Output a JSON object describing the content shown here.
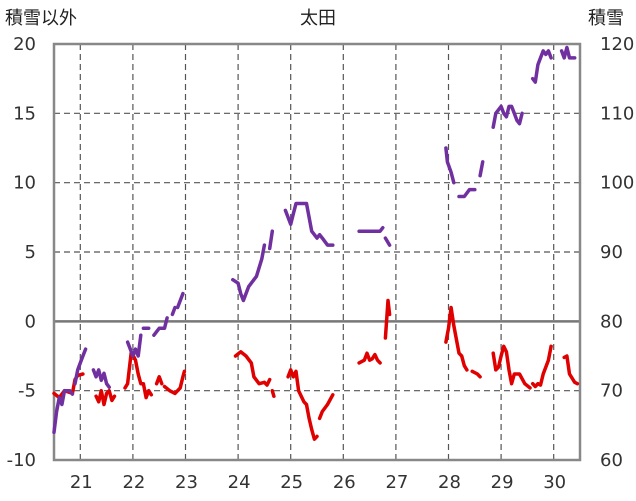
{
  "chart_data": {
    "type": "line",
    "title": "太田",
    "left_axis_label": "積雪以外",
    "right_axis_label": "積雪",
    "x_tick_labels": [
      "21",
      "22",
      "23",
      "24",
      "25",
      "26",
      "27",
      "28",
      "29",
      "30"
    ],
    "xlim": [
      20.5,
      30.5
    ],
    "left_ylim": [
      -10,
      20
    ],
    "left_ticks": [
      "20",
      "15",
      "10",
      "5",
      "0",
      "-5",
      "-10"
    ],
    "right_ylim": [
      60,
      120
    ],
    "right_ticks": [
      "120",
      "110",
      "100",
      "90",
      "80",
      "70",
      "60"
    ],
    "grid": true,
    "series": [
      {
        "axis": "left",
        "color": "#e00000",
        "segments": [
          [
            [
              20.5,
              -5.2
            ],
            [
              20.6,
              -5.5
            ],
            [
              20.7,
              -5.0
            ],
            [
              20.85,
              -5.2
            ],
            [
              20.9,
              -4.2
            ],
            [
              20.95,
              -3.9
            ],
            [
              21.05,
              -3.8
            ]
          ],
          [
            [
              21.3,
              -5.4
            ],
            [
              21.35,
              -5.8
            ],
            [
              21.4,
              -5.0
            ],
            [
              21.45,
              -6.0
            ],
            [
              21.5,
              -5.2
            ],
            [
              21.55,
              -5.0
            ],
            [
              21.6,
              -5.7
            ],
            [
              21.65,
              -5.4
            ]
          ],
          [
            [
              21.85,
              -4.8
            ],
            [
              21.9,
              -4.5
            ],
            [
              21.97,
              -2.2
            ],
            [
              22.05,
              -2.8
            ],
            [
              22.1,
              -3.8
            ],
            [
              22.15,
              -4.5
            ],
            [
              22.2,
              -4.5
            ],
            [
              22.25,
              -5.5
            ],
            [
              22.3,
              -5.0
            ],
            [
              22.35,
              -5.3
            ]
          ],
          [
            [
              22.45,
              -4.5
            ],
            [
              22.5,
              -4.0
            ],
            [
              22.55,
              -4.5
            ]
          ],
          [
            [
              22.6,
              -4.7
            ],
            [
              22.7,
              -5.0
            ],
            [
              22.8,
              -5.2
            ],
            [
              22.9,
              -4.8
            ],
            [
              22.95,
              -4.0
            ],
            [
              22.98,
              -3.6
            ]
          ],
          [
            [
              23.95,
              -2.5
            ],
            [
              24.05,
              -2.2
            ],
            [
              24.15,
              -2.5
            ],
            [
              24.25,
              -3.0
            ],
            [
              24.3,
              -4.0
            ],
            [
              24.4,
              -4.5
            ],
            [
              24.5,
              -4.4
            ],
            [
              24.55,
              -4.6
            ],
            [
              24.6,
              -4.2
            ]
          ],
          [
            [
              24.65,
              -5.0
            ],
            [
              24.68,
              -5.4
            ]
          ],
          [
            [
              24.95,
              -4.0
            ],
            [
              25.0,
              -3.5
            ],
            [
              25.05,
              -4.0
            ],
            [
              25.1,
              -3.6
            ],
            [
              25.15,
              -5.0
            ],
            [
              25.25,
              -5.8
            ],
            [
              25.3,
              -6.0
            ],
            [
              25.35,
              -7.0
            ],
            [
              25.4,
              -7.8
            ],
            [
              25.45,
              -8.5
            ],
            [
              25.5,
              -8.3
            ]
          ],
          [
            [
              25.55,
              -7.0
            ],
            [
              25.6,
              -6.5
            ],
            [
              25.7,
              -6.0
            ],
            [
              25.8,
              -5.3
            ]
          ],
          [
            [
              26.3,
              -3.0
            ],
            [
              26.4,
              -2.8
            ],
            [
              26.45,
              -2.3
            ],
            [
              26.5,
              -2.8
            ],
            [
              26.55,
              -2.7
            ],
            [
              26.6,
              -2.4
            ],
            [
              26.65,
              -2.8
            ],
            [
              26.7,
              -3.0
            ]
          ],
          [
            [
              26.8,
              -1.2
            ],
            [
              26.85,
              1.5
            ],
            [
              26.88,
              0.5
            ]
          ],
          [
            [
              27.95,
              -1.5
            ],
            [
              28.0,
              -0.5
            ],
            [
              28.05,
              1.0
            ],
            [
              28.1,
              -0.3
            ],
            [
              28.2,
              -2.3
            ],
            [
              28.25,
              -2.5
            ],
            [
              28.3,
              -3.2
            ],
            [
              28.35,
              -3.5
            ]
          ],
          [
            [
              28.45,
              -3.6
            ],
            [
              28.55,
              -3.8
            ],
            [
              28.6,
              -4.0
            ]
          ],
          [
            [
              28.85,
              -2.3
            ],
            [
              28.9,
              -3.5
            ],
            [
              28.95,
              -3.3
            ],
            [
              29.0,
              -2.5
            ],
            [
              29.05,
              -1.8
            ],
            [
              29.1,
              -2.2
            ],
            [
              29.15,
              -3.5
            ],
            [
              29.2,
              -4.5
            ],
            [
              29.25,
              -3.8
            ],
            [
              29.35,
              -3.8
            ],
            [
              29.45,
              -4.5
            ],
            [
              29.55,
              -4.8
            ]
          ],
          [
            [
              29.6,
              -4.5
            ],
            [
              29.65,
              -4.7
            ],
            [
              29.7,
              -4.5
            ],
            [
              29.75,
              -4.6
            ],
            [
              29.8,
              -3.8
            ],
            [
              29.9,
              -2.8
            ],
            [
              29.95,
              -1.8
            ]
          ],
          [
            [
              30.2,
              -2.6
            ],
            [
              30.25,
              -2.5
            ],
            [
              30.3,
              -3.8
            ],
            [
              30.4,
              -4.4
            ],
            [
              30.45,
              -4.5
            ]
          ]
        ]
      },
      {
        "axis": "right",
        "color": "#7030a0",
        "segments": [
          [
            [
              20.5,
              64
            ],
            [
              20.55,
              67
            ],
            [
              20.6,
              69
            ],
            [
              20.65,
              68
            ],
            [
              20.7,
              70
            ],
            [
              20.8,
              70
            ],
            [
              20.85,
              69.5
            ]
          ],
          [
            [
              20.9,
              71
            ],
            [
              20.95,
              73
            ],
            [
              21.0,
              74
            ],
            [
              21.05,
              75
            ],
            [
              21.1,
              76
            ]
          ],
          [
            [
              21.25,
              73
            ],
            [
              21.3,
              72
            ],
            [
              21.35,
              73
            ],
            [
              21.4,
              71.5
            ],
            [
              21.45,
              72.5
            ],
            [
              21.5,
              71
            ],
            [
              21.55,
              70.5
            ]
          ],
          [
            [
              21.9,
              77
            ],
            [
              21.95,
              76
            ],
            [
              22.0,
              75
            ],
            [
              22.05,
              76
            ],
            [
              22.1,
              75
            ],
            [
              22.15,
              78
            ]
          ],
          [
            [
              22.2,
              79
            ],
            [
              22.3,
              79
            ]
          ],
          [
            [
              22.4,
              78
            ],
            [
              22.5,
              79
            ],
            [
              22.6,
              79
            ],
            [
              22.65,
              80.5
            ]
          ],
          [
            [
              22.75,
              81
            ],
            [
              22.8,
              82
            ]
          ],
          [
            [
              22.85,
              82
            ],
            [
              22.95,
              84
            ]
          ],
          [
            [
              23.9,
              86
            ],
            [
              24.0,
              85.5
            ],
            [
              24.05,
              84
            ],
            [
              24.1,
              83
            ],
            [
              24.2,
              85
            ],
            [
              24.3,
              86
            ],
            [
              24.35,
              86.5
            ],
            [
              24.45,
              89
            ],
            [
              24.5,
              91
            ]
          ],
          [
            [
              24.6,
              90.5
            ],
            [
              24.65,
              93
            ]
          ],
          [
            [
              24.9,
              96
            ],
            [
              25.0,
              94
            ],
            [
              25.05,
              95.5
            ],
            [
              25.1,
              97
            ],
            [
              25.2,
              97
            ],
            [
              25.3,
              97
            ],
            [
              25.35,
              95
            ],
            [
              25.4,
              93
            ],
            [
              25.5,
              92
            ],
            [
              25.55,
              92.5
            ],
            [
              25.6,
              92
            ],
            [
              25.7,
              91
            ],
            [
              25.8,
              91
            ]
          ],
          [
            [
              26.3,
              93
            ],
            [
              26.5,
              93
            ],
            [
              26.7,
              93
            ],
            [
              26.75,
              93.5
            ]
          ],
          [
            [
              26.8,
              92
            ],
            [
              26.88,
              91
            ]
          ],
          [
            [
              27.95,
              105
            ],
            [
              27.98,
              103
            ],
            [
              28.05,
              101.5
            ],
            [
              28.1,
              100
            ]
          ],
          [
            [
              28.2,
              98
            ],
            [
              28.3,
              98
            ],
            [
              28.4,
              99
            ],
            [
              28.5,
              99
            ]
          ],
          [
            [
              28.6,
              101
            ],
            [
              28.65,
              103
            ]
          ],
          [
            [
              28.85,
              108
            ],
            [
              28.9,
              110
            ],
            [
              29.0,
              111
            ],
            [
              29.05,
              110
            ],
            [
              29.1,
              109.5
            ],
            [
              29.15,
              111
            ],
            [
              29.2,
              111
            ],
            [
              29.25,
              110
            ],
            [
              29.3,
              109
            ],
            [
              29.35,
              108.5
            ],
            [
              29.4,
              110
            ]
          ],
          [
            [
              29.6,
              115
            ],
            [
              29.65,
              114.5
            ],
            [
              29.7,
              117
            ],
            [
              29.75,
              118
            ],
            [
              29.8,
              119
            ],
            [
              29.85,
              118.5
            ],
            [
              29.9,
              119
            ],
            [
              29.95,
              118
            ]
          ],
          [
            [
              30.15,
              119
            ],
            [
              30.2,
              118
            ],
            [
              30.25,
              119.5
            ],
            [
              30.3,
              118
            ],
            [
              30.35,
              118
            ],
            [
              30.4,
              118
            ]
          ]
        ]
      }
    ]
  }
}
